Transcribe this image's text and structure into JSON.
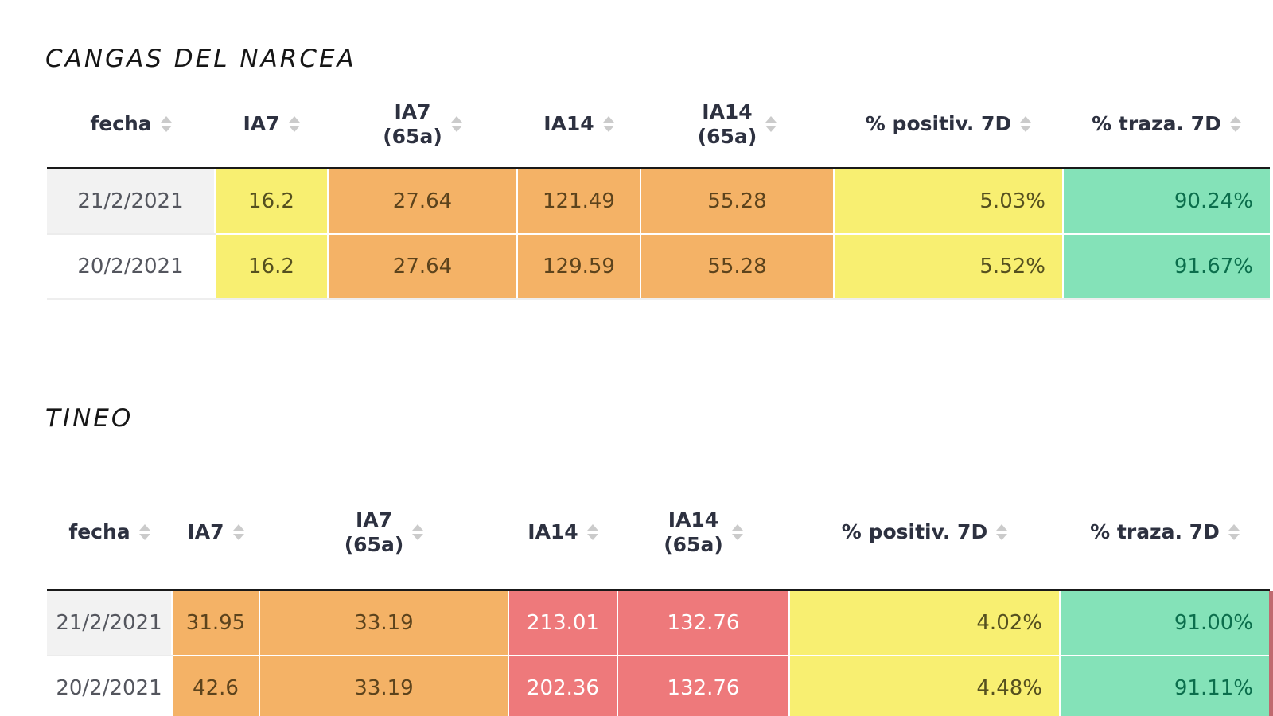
{
  "palette": {
    "cell_yellow": "#f8ef71",
    "cell_orange": "#f4b266",
    "cell_red": "#ee797b",
    "cell_green": "#84e2b8",
    "text_on_yellow": "#55501f",
    "text_on_orange": "#5c431c",
    "text_on_red": "#ffffff",
    "text_on_green": "#0b6e4c",
    "date_text": "#54565e",
    "header_text": "#2d3140",
    "row1_date_bg": "#f2f2f2",
    "top_border": "#191919",
    "sort_arrow": "#cbcbcb"
  },
  "tables": [
    {
      "title": "CANGAS DEL NARCEA",
      "columns": [
        "fecha",
        "IA7",
        "IA7\n(65a)",
        "IA14",
        "IA14\n(65a)",
        "% positiv. 7D",
        "% traza. 7D"
      ],
      "rows": [
        {
          "fecha": "21/2/2021",
          "cells": [
            {
              "v": "16.2",
              "c": "yellow"
            },
            {
              "v": "27.64",
              "c": "orange"
            },
            {
              "v": "121.49",
              "c": "orange"
            },
            {
              "v": "55.28",
              "c": "orange"
            },
            {
              "v": "5.03%",
              "c": "yellow"
            },
            {
              "v": "90.24%",
              "c": "green"
            }
          ]
        },
        {
          "fecha": "20/2/2021",
          "cells": [
            {
              "v": "16.2",
              "c": "yellow"
            },
            {
              "v": "27.64",
              "c": "orange"
            },
            {
              "v": "129.59",
              "c": "orange"
            },
            {
              "v": "55.28",
              "c": "orange"
            },
            {
              "v": "5.52%",
              "c": "yellow"
            },
            {
              "v": "91.67%",
              "c": "green"
            }
          ]
        }
      ]
    },
    {
      "title": "TINEO",
      "columns": [
        "fecha",
        "IA7",
        "IA7\n(65a)",
        "IA14",
        "IA14\n(65a)",
        "% positiv. 7D",
        "% traza. 7D"
      ],
      "rows": [
        {
          "fecha": "21/2/2021",
          "cells": [
            {
              "v": "31.95",
              "c": "orange"
            },
            {
              "v": "33.19",
              "c": "orange"
            },
            {
              "v": "213.01",
              "c": "red"
            },
            {
              "v": "132.76",
              "c": "red"
            },
            {
              "v": "4.02%",
              "c": "yellow"
            },
            {
              "v": "91.00%",
              "c": "green"
            }
          ]
        },
        {
          "fecha": "20/2/2021",
          "cells": [
            {
              "v": "42.6",
              "c": "orange"
            },
            {
              "v": "33.19",
              "c": "orange"
            },
            {
              "v": "202.36",
              "c": "red"
            },
            {
              "v": "132.76",
              "c": "red"
            },
            {
              "v": "4.48%",
              "c": "yellow"
            },
            {
              "v": "91.11%",
              "c": "green"
            }
          ]
        }
      ]
    }
  ],
  "chart_data": [
    {
      "type": "table",
      "title": "CANGAS DEL NARCEA",
      "columns": [
        "fecha",
        "IA7",
        "IA7 (65a)",
        "IA14",
        "IA14 (65a)",
        "% positiv. 7D",
        "% traza. 7D"
      ],
      "rows": [
        [
          "21/2/2021",
          16.2,
          27.64,
          121.49,
          55.28,
          "5.03%",
          "90.24%"
        ],
        [
          "20/2/2021",
          16.2,
          27.64,
          129.59,
          55.28,
          "5.52%",
          "91.67%"
        ]
      ],
      "cell_color_coding": "yellow/orange/red indicate rising incidence severity; green for traceability"
    },
    {
      "type": "table",
      "title": "TINEO",
      "columns": [
        "fecha",
        "IA7",
        "IA7 (65a)",
        "IA14",
        "IA14 (65a)",
        "% positiv. 7D",
        "% traza. 7D"
      ],
      "rows": [
        [
          "21/2/2021",
          31.95,
          33.19,
          213.01,
          132.76,
          "4.02%",
          "91.00%"
        ],
        [
          "20/2/2021",
          42.6,
          33.19,
          202.36,
          132.76,
          "4.48%",
          "91.11%"
        ]
      ],
      "cell_color_coding": "yellow/orange/red indicate rising incidence severity; green for traceability"
    }
  ]
}
